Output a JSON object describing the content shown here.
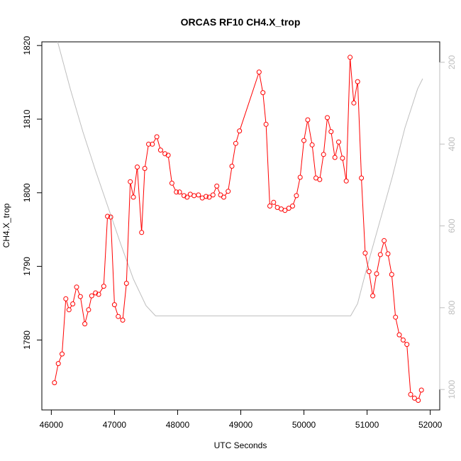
{
  "chart_data": {
    "type": "line",
    "title": "ORCAS RF10 CH4.X_trop",
    "xlabel": "UTC Seconds",
    "ylabel": "CH4.X_trop",
    "xlim": [
      45850,
      52150
    ],
    "ylim": [
      1770.5,
      1820.5
    ],
    "x_ticks": [
      46000,
      47000,
      48000,
      49000,
      50000,
      51000,
      52000
    ],
    "x_tick_labels": [
      "46000",
      "47000",
      "48000",
      "49000",
      "50000",
      "51000",
      "52000"
    ],
    "y_ticks": [
      1780,
      1790,
      1800,
      1810,
      1820
    ],
    "y_tick_labels": [
      "1780",
      "1790",
      "1800",
      "1810",
      "1820"
    ],
    "y2_lim": [
      1050,
      150
    ],
    "y2_ticks": [
      200,
      400,
      600,
      800,
      1000
    ],
    "y2_tick_labels": [
      "200",
      "400",
      "600",
      "800",
      "1000"
    ],
    "grid": false,
    "colors": {
      "series": "#ff0000",
      "secondary": "#bebebe",
      "axis": "#000000"
    },
    "series": [
      {
        "x": [
          46050,
          46110,
          46170,
          46230,
          46280,
          46340,
          46400,
          46460,
          46530,
          46590,
          46640,
          46700,
          46750,
          46830,
          46890,
          46940,
          47000,
          47060,
          47130,
          47190,
          47250,
          47300,
          47360,
          47430,
          47480,
          47540,
          47600,
          47670,
          47730,
          47800,
          47850,
          47910,
          47980,
          48030,
          48100,
          48150,
          48200,
          48260,
          48330,
          48390,
          48450,
          48500,
          48560,
          48620,
          48680,
          48730,
          48800,
          48860,
          48920,
          48980,
          49290,
          49350,
          49400,
          49460,
          49520,
          49580,
          49640,
          49700,
          49760,
          49820,
          49880,
          49940,
          50000,
          50060,
          50130,
          50190,
          50250,
          50310,
          50370,
          50430,
          50490,
          50550,
          50610,
          50670,
          50730,
          50790,
          50850,
          50910,
          50970,
          51030,
          51090,
          51150,
          51210,
          51270,
          51330,
          51390,
          51450,
          51510,
          51570,
          51630,
          51690,
          51750,
          51810,
          51860
        ],
        "y": [
          1774.2,
          1776.8,
          1778.1,
          1785.6,
          1784.1,
          1784.9,
          1787.2,
          1785.9,
          1782.2,
          1784.1,
          1786.0,
          1786.4,
          1786.2,
          1787.3,
          1796.8,
          1796.7,
          1784.8,
          1783.2,
          1782.7,
          1787.7,
          1801.5,
          1799.4,
          1803.5,
          1794.6,
          1803.3,
          1806.6,
          1806.6,
          1807.6,
          1805.8,
          1805.3,
          1805.1,
          1801.3,
          1800.1,
          1800.1,
          1799.6,
          1799.4,
          1799.8,
          1799.6,
          1799.7,
          1799.3,
          1799.5,
          1799.4,
          1799.7,
          1800.9,
          1799.7,
          1799.4,
          1800.2,
          1803.6,
          1806.7,
          1808.4,
          1816.4,
          1813.6,
          1809.3,
          1798.2,
          1798.7,
          1798.0,
          1797.8,
          1797.6,
          1797.9,
          1798.2,
          1799.6,
          1802.1,
          1807.1,
          1809.9,
          1806.5,
          1802.0,
          1801.8,
          1805.2,
          1810.2,
          1808.3,
          1804.8,
          1806.9,
          1804.7,
          1801.6,
          1818.4,
          1812.2,
          1815.1,
          1802.0,
          1791.8,
          1789.3,
          1786.0,
          1789.0,
          1791.6,
          1793.5,
          1791.7,
          1788.9,
          1783.1,
          1780.7,
          1780.0,
          1779.4,
          1772.6,
          1772.1,
          1771.8,
          1773.2
        ]
      }
    ],
    "secondary_series": {
      "x": [
        46100,
        46300,
        46500,
        46700,
        46900,
        47100,
        47300,
        47500,
        47650,
        47800,
        48000,
        48500,
        49000,
        49500,
        50000,
        50500,
        50740,
        50850,
        51000,
        51200,
        51400,
        51600,
        51800,
        51880
      ],
      "y": [
        150,
        265,
        370,
        465,
        555,
        645,
        730,
        795,
        820,
        820,
        820,
        820,
        820,
        820,
        820,
        820,
        820,
        790,
        700,
        590,
        480,
        360,
        265,
        240
      ]
    }
  }
}
